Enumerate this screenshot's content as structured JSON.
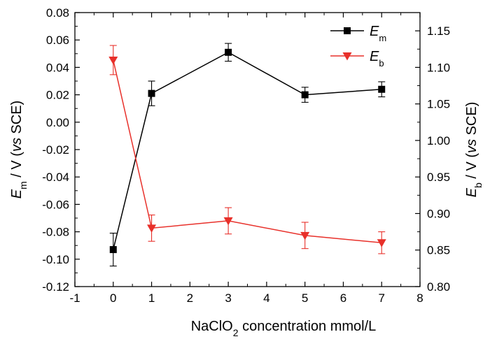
{
  "chart_data": {
    "type": "line",
    "xlabel": {
      "pre": "NaClO",
      "sub": "2",
      "post": " concentration mmol/L"
    },
    "ylabel_left": {
      "sym": "E",
      "sub": "m",
      "mid": " / V (",
      "italic": "vs",
      "post": " SCE)"
    },
    "ylabel_right": {
      "sym": "E",
      "sub": "b",
      "mid": " / V (",
      "italic": "vs",
      "post": " SCE)"
    },
    "xlim": [
      -1,
      8
    ],
    "ylim_left": [
      -0.12,
      0.08
    ],
    "ylim_right": [
      0.8,
      1.175
    ],
    "x_ticks": [
      "-1",
      "0",
      "1",
      "2",
      "3",
      "4",
      "5",
      "6",
      "7",
      "8"
    ],
    "y_left_ticks": [
      "-0.12",
      "-0.10",
      "-0.08",
      "-0.06",
      "-0.04",
      "-0.02",
      "0.00",
      "0.02",
      "0.04",
      "0.06",
      "0.08"
    ],
    "y_right_ticks": [
      "0.80",
      "0.85",
      "0.90",
      "0.95",
      "1.00",
      "1.05",
      "1.10",
      "1.15"
    ],
    "grid": false,
    "legend_position": "top-right",
    "series": [
      {
        "name": "Em",
        "name_sym": "E",
        "name_sub": "m",
        "axis": "left",
        "color": "#000000",
        "marker": "square",
        "x": [
          0,
          1,
          3,
          5,
          7
        ],
        "y": [
          -0.093,
          0.021,
          0.051,
          0.02,
          0.024
        ],
        "err": [
          0.012,
          0.009,
          0.0065,
          0.0055,
          0.0055
        ]
      },
      {
        "name": "Eb",
        "name_sym": "E",
        "name_sub": "b",
        "axis": "right",
        "color": "#e8302a",
        "marker": "triangle-down",
        "x": [
          0,
          1,
          3,
          5,
          7
        ],
        "y": [
          1.11,
          0.88,
          0.89,
          0.87,
          0.86
        ],
        "err": [
          0.02,
          0.018,
          0.018,
          0.018,
          0.015
        ]
      }
    ]
  }
}
